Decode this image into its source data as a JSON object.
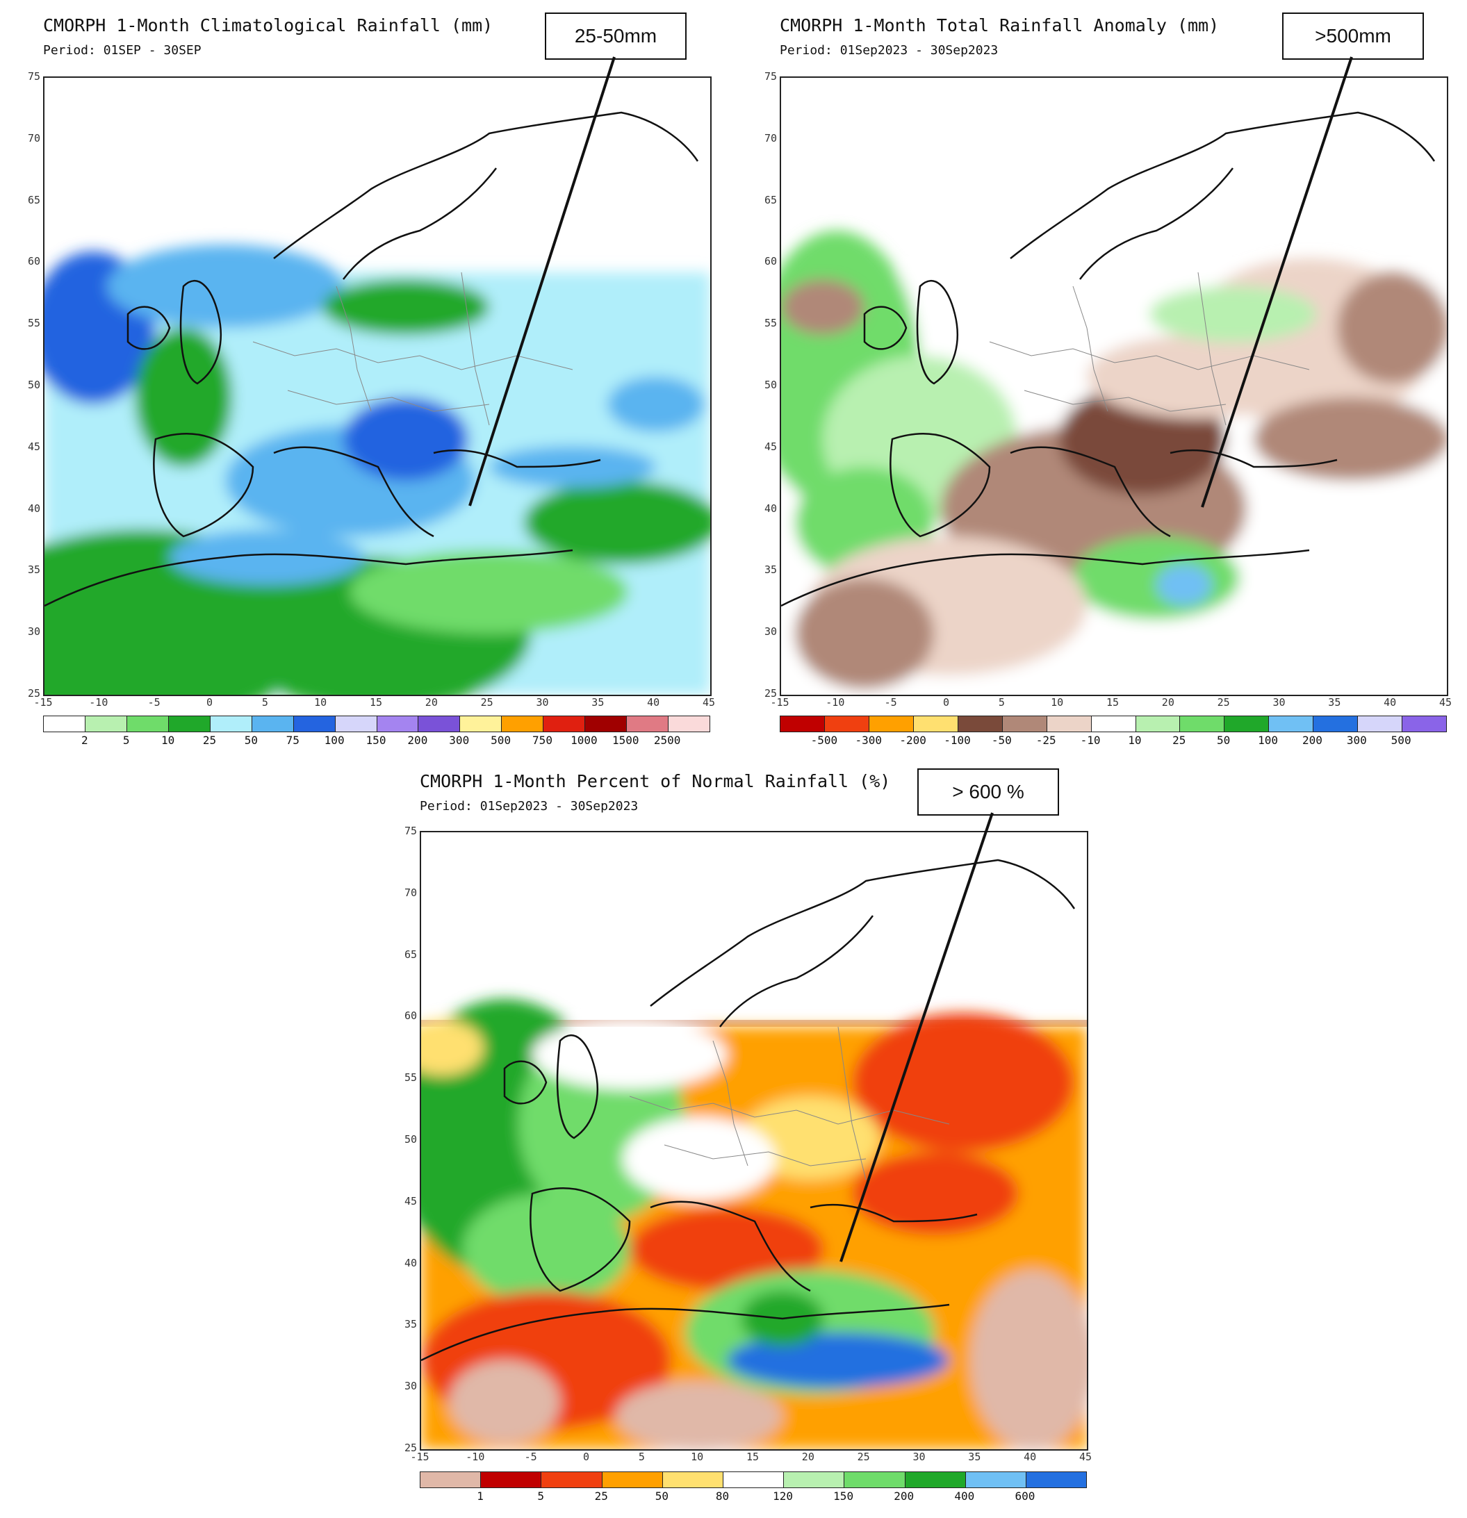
{
  "panels": [
    {
      "id": "climatology",
      "title": "CMORPH 1-Month Climatological Rainfall (mm)",
      "period": "Period: 01SEP - 30SEP",
      "callout": "25-50mm",
      "colorbar": {
        "colors": [
          "#ffffff",
          "#b8f0b0",
          "#6fdc6a",
          "#20a82a",
          "#b0eefa",
          "#5ab4f0",
          "#2464e0",
          "#d6d6fa",
          "#a484f0",
          "#7a52d8",
          "#fff29a",
          "#ffa000",
          "#e02010",
          "#a00000",
          "#e07a84",
          "#fadada"
        ],
        "labels": [
          "2",
          "5",
          "10",
          "25",
          "50",
          "75",
          "100",
          "150",
          "200",
          "300",
          "500",
          "750",
          "1000",
          "1500",
          "2500"
        ]
      }
    },
    {
      "id": "anomaly",
      "title": "CMORPH 1-Month Total Rainfall Anomaly (mm)",
      "period": "Period: 01Sep2023 - 30Sep2023",
      "callout": ">500mm",
      "colorbar": {
        "colors": [
          "#c00000",
          "#f04010",
          "#ffa000",
          "#ffe070",
          "#7a4a3a",
          "#b08878",
          "#ecd4c8",
          "#ffffff",
          "#b8f0b0",
          "#6fdc6a",
          "#20a82a",
          "#70c0f4",
          "#2470e0",
          "#d6d6fa",
          "#8a64e8"
        ],
        "labels": [
          "-500",
          "-300",
          "-200",
          "-100",
          "-50",
          "-25",
          "-10",
          "10",
          "25",
          "50",
          "100",
          "200",
          "300",
          "500"
        ]
      }
    },
    {
      "id": "percent",
      "title": "CMORPH 1-Month Percent of Normal Rainfall (%)",
      "period": "Period: 01Sep2023 - 30Sep2023",
      "callout": "> 600 %",
      "colorbar": {
        "colors": [
          "#e0b8a8",
          "#c00000",
          "#f04010",
          "#ffa000",
          "#ffe070",
          "#ffffff",
          "#b8f0b0",
          "#6fdc6a",
          "#20a82a",
          "#70c0f4",
          "#2470e0"
        ],
        "labels": [
          "1",
          "5",
          "25",
          "50",
          "80",
          "120",
          "150",
          "200",
          "400",
          "600"
        ]
      }
    }
  ],
  "axes": {
    "lon_ticks": [
      "-15",
      "-10",
      "-5",
      "0",
      "5",
      "10",
      "15",
      "20",
      "25",
      "30",
      "35",
      "40",
      "45"
    ],
    "lat_ticks": [
      "75",
      "70",
      "65",
      "60",
      "55",
      "50",
      "45",
      "40",
      "35",
      "30",
      "25"
    ]
  }
}
